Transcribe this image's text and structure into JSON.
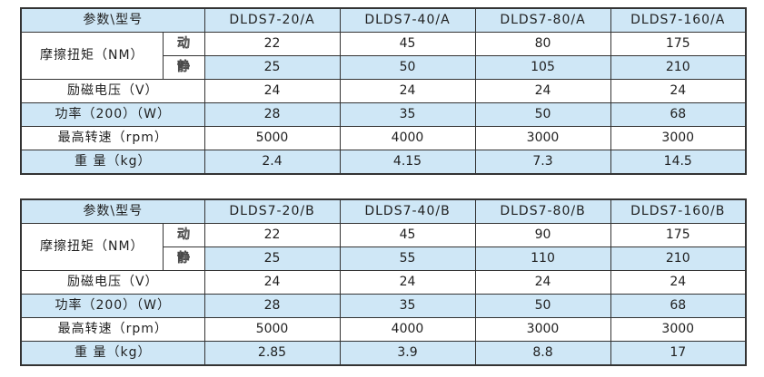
{
  "colors": {
    "stripe_blue": "#cfe7f6",
    "border": "#333333",
    "text": "#1f1f1f",
    "background": "#ffffff"
  },
  "tables": [
    {
      "corner_label": "参数\\型号",
      "models": [
        "DLDS7-20/A",
        "DLDS7-40/A",
        "DLDS7-80/A",
        "DLDS7-160/A"
      ],
      "rows": {
        "friction_torque": {
          "label": "摩擦扭矩（NM）",
          "dynamic": {
            "tag": "动",
            "values": [
              "22",
              "45",
              "80",
              "175"
            ]
          },
          "static": {
            "tag": "静",
            "values": [
              "25",
              "50",
              "105",
              "210"
            ]
          }
        },
        "excitation_voltage": {
          "label": "励磁电压（V）",
          "values": [
            "24",
            "24",
            "24",
            "24"
          ]
        },
        "power": {
          "label": "功率（200）（W）",
          "values": [
            "28",
            "35",
            "50",
            "68"
          ]
        },
        "max_speed": {
          "label": "最高转速（rpm）",
          "values": [
            "5000",
            "4000",
            "3000",
            "3000"
          ]
        },
        "weight": {
          "label": "重 量（kg）",
          "values": [
            "2.4",
            "4.15",
            "7.3",
            "14.5"
          ]
        }
      }
    },
    {
      "corner_label": "参数\\型号",
      "models": [
        "DLDS7-20/B",
        "DLDS7-40/B",
        "DLDS7-80/B",
        "DLDS7-160/B"
      ],
      "rows": {
        "friction_torque": {
          "label": "摩擦扭矩（NM）",
          "dynamic": {
            "tag": "动",
            "values": [
              "22",
              "45",
              "90",
              "175"
            ]
          },
          "static": {
            "tag": "静",
            "values": [
              "25",
              "55",
              "110",
              "210"
            ]
          }
        },
        "excitation_voltage": {
          "label": "励磁电压（V）",
          "values": [
            "24",
            "24",
            "24",
            "24"
          ]
        },
        "power": {
          "label": "功率（200）（W）",
          "values": [
            "28",
            "35",
            "50",
            "68"
          ]
        },
        "max_speed": {
          "label": "最高转速（rpm）",
          "values": [
            "5000",
            "4000",
            "3000",
            "3000"
          ]
        },
        "weight": {
          "label": "重 量（kg）",
          "values": [
            "2.85",
            "3.9",
            "8.8",
            "17"
          ]
        }
      }
    }
  ]
}
